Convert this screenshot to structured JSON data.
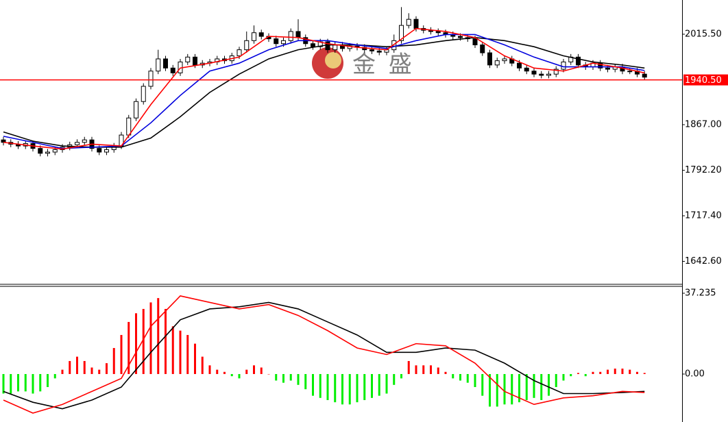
{
  "chart_data": [
    {
      "type": "candlestick",
      "watermark": "金 盛",
      "up_color": "#ffffff",
      "down_color": "#000000",
      "edge_color": "#000000",
      "open": [
        1842,
        1838,
        1835,
        1832,
        1836,
        1828,
        1820,
        1822,
        1826,
        1830,
        1834,
        1838,
        1842,
        1828,
        1822,
        1826,
        1832,
        1850,
        1878,
        1905,
        1930,
        1955,
        1975,
        1960,
        1952,
        1970,
        1978,
        1965,
        1968,
        1970,
        1975,
        1972,
        1980,
        1990,
        2005,
        2018,
        2012,
        2008,
        2000,
        2005,
        2020,
        2010,
        2000,
        1995,
        2003,
        1990,
        1998,
        1992,
        1996,
        1994,
        1990,
        1988,
        1986,
        1990,
        2005,
        2030,
        2040,
        2025,
        2022,
        2020,
        2018,
        2015,
        2012,
        2010,
        2008,
        1998,
        1985,
        1965,
        1972,
        1975,
        1968,
        1960,
        1955,
        1950,
        1948,
        1950,
        1958,
        1970,
        1978,
        1965,
        1962,
        1968,
        1960,
        1958,
        1962,
        1955,
        1955,
        1950
      ],
      "high": [
        1847,
        1843,
        1840,
        1841,
        1841,
        1833,
        1827,
        1831,
        1835,
        1839,
        1843,
        1847,
        1847,
        1833,
        1831,
        1837,
        1855,
        1883,
        1910,
        1935,
        1960,
        1990,
        1980,
        1965,
        1975,
        1983,
        1983,
        1973,
        1975,
        1980,
        1980,
        1985,
        1995,
        2020,
        2030,
        2023,
        2017,
        2013,
        2010,
        2025,
        2040,
        2015,
        2005,
        2008,
        2008,
        2003,
        2003,
        2001,
        2001,
        1999,
        1995,
        1993,
        1995,
        2015,
        2060,
        2050,
        2045,
        2030,
        2027,
        2025,
        2023,
        2020,
        2017,
        2015,
        2013,
        2003,
        1990,
        1977,
        1980,
        1980,
        1973,
        1965,
        1960,
        1955,
        1955,
        1963,
        1975,
        1983,
        1983,
        1970,
        1973,
        1973,
        1965,
        1967,
        1967,
        1960,
        1960,
        1955
      ],
      "low": [
        1833,
        1830,
        1827,
        1827,
        1823,
        1815,
        1815,
        1817,
        1821,
        1825,
        1829,
        1833,
        1823,
        1817,
        1817,
        1821,
        1827,
        1845,
        1873,
        1900,
        1925,
        1950,
        1955,
        1947,
        1947,
        1965,
        1960,
        1960,
        1963,
        1965,
        1967,
        1967,
        1975,
        1985,
        2000,
        2007,
        2003,
        1995,
        1995,
        2000,
        2005,
        1995,
        1990,
        1990,
        1985,
        1985,
        1987,
        1987,
        1989,
        1985,
        1983,
        1981,
        1981,
        1985,
        2000,
        2025,
        2020,
        2017,
        2015,
        2013,
        2010,
        2007,
        2005,
        2003,
        1993,
        1980,
        1960,
        1960,
        1967,
        1963,
        1955,
        1950,
        1945,
        1943,
        1943,
        1945,
        1953,
        1965,
        1960,
        1957,
        1957,
        1955,
        1953,
        1953,
        1950,
        1950,
        1945,
        1940
      ],
      "close": [
        1838,
        1835,
        1832,
        1836,
        1828,
        1820,
        1822,
        1826,
        1830,
        1834,
        1838,
        1842,
        1828,
        1822,
        1826,
        1832,
        1850,
        1878,
        1905,
        1930,
        1955,
        1975,
        1960,
        1952,
        1970,
        1978,
        1965,
        1968,
        1970,
        1975,
        1972,
        1980,
        1990,
        2005,
        2018,
        2012,
        2008,
        2000,
        2005,
        2020,
        2010,
        2000,
        1995,
        2003,
        1990,
        1998,
        1992,
        1996,
        1994,
        1990,
        1988,
        1986,
        1990,
        2005,
        2030,
        2040,
        2025,
        2022,
        2020,
        2018,
        2015,
        2012,
        2010,
        2008,
        1998,
        1985,
        1965,
        1972,
        1975,
        1968,
        1960,
        1955,
        1950,
        1948,
        1950,
        1958,
        1970,
        1978,
        1965,
        1962,
        1968,
        1960,
        1958,
        1962,
        1955,
        1955,
        1950,
        1945
      ],
      "series": [
        {
          "color": "#000000",
          "x": [
            0,
            4,
            8,
            12,
            16,
            20,
            24,
            28,
            32,
            36,
            40,
            44,
            48,
            52,
            56,
            60,
            64,
            68,
            72,
            76,
            80,
            84,
            87
          ],
          "values": [
            1855,
            1840,
            1832,
            1830,
            1830,
            1845,
            1880,
            1920,
            1950,
            1975,
            1990,
            1998,
            1998,
            1995,
            1998,
            2005,
            2010,
            2005,
            1995,
            1980,
            1970,
            1965,
            1960
          ]
        },
        {
          "color": "#0000dd",
          "x": [
            0,
            4,
            8,
            12,
            16,
            20,
            24,
            28,
            32,
            36,
            40,
            44,
            48,
            52,
            56,
            60,
            64,
            68,
            72,
            76,
            80,
            84,
            87
          ],
          "values": [
            1848,
            1838,
            1828,
            1830,
            1832,
            1870,
            1915,
            1955,
            1968,
            1990,
            2005,
            2005,
            1998,
            1992,
            2005,
            2015,
            2015,
            1998,
            1978,
            1962,
            1962,
            1962,
            1956
          ]
        },
        {
          "color": "#ff0000",
          "x": [
            0,
            4,
            8,
            12,
            16,
            20,
            24,
            28,
            32,
            36,
            40,
            44,
            48,
            52,
            56,
            60,
            64,
            68,
            72,
            76,
            80,
            84,
            87
          ],
          "values": [
            1838,
            1832,
            1827,
            1835,
            1832,
            1900,
            1960,
            1968,
            1978,
            2012,
            2010,
            2000,
            1994,
            1990,
            2025,
            2020,
            2010,
            1980,
            1960,
            1955,
            1968,
            1960,
            1952
          ]
        }
      ],
      "current_price": {
        "value": 1940.5,
        "label": "1940.50"
      },
      "current_price_color": "#ff0000",
      "ylim": [
        1604.9,
        2071.7
      ],
      "yticks": [
        {
          "value": 1642.6,
          "label": "1642.60"
        },
        {
          "value": 1717.4,
          "label": "1717.40"
        },
        {
          "value": 1792.2,
          "label": "1792.20"
        },
        {
          "value": 1867,
          "label": "1867.00"
        },
        {
          "value": 2015.5,
          "label": "2015.50"
        }
      ]
    },
    {
      "type": "macd",
      "up_color": "#ff0000",
      "down_color": "#00ee00",
      "values": [
        -9,
        -9,
        -8,
        -8,
        -9,
        -8,
        -6,
        -2,
        2,
        6,
        8,
        6,
        3,
        2,
        5,
        12,
        18,
        24,
        28,
        30,
        33,
        35,
        30,
        22,
        20,
        18,
        14,
        8,
        4,
        2,
        1,
        -1,
        -2,
        2,
        4,
        3,
        0,
        -3,
        -4,
        -3,
        -5,
        -7,
        -10,
        -11,
        -12,
        -13,
        -14,
        -14,
        -13,
        -12,
        -11,
        -10,
        -9,
        -5,
        -2,
        6,
        4,
        4,
        4,
        3,
        1,
        -2,
        -3,
        -4,
        -6,
        -10,
        -15,
        -15,
        -14,
        -14,
        -13,
        -12,
        -11,
        -12,
        -10,
        -6,
        -3,
        -1,
        0.5,
        -1,
        1,
        1,
        2,
        2.5,
        2.5,
        2,
        1,
        0.5
      ],
      "series": [
        {
          "color": "#000000",
          "x": [
            0,
            4,
            8,
            12,
            16,
            20,
            24,
            28,
            32,
            36,
            40,
            44,
            48,
            52,
            56,
            60,
            64,
            68,
            72,
            76,
            80,
            84,
            87
          ],
          "values": [
            -8,
            -13,
            -16,
            -12,
            -6,
            10,
            25,
            30,
            31,
            33,
            30,
            24,
            18,
            10,
            10,
            12,
            11,
            5,
            -3,
            -9,
            -9,
            -8.5,
            -8
          ]
        },
        {
          "color": "#ff0000",
          "x": [
            0,
            4,
            8,
            12,
            16,
            20,
            24,
            28,
            32,
            36,
            40,
            44,
            48,
            52,
            56,
            60,
            64,
            68,
            72,
            76,
            80,
            84,
            87
          ],
          "values": [
            -12,
            -18,
            -14,
            -8,
            -2,
            22,
            36,
            33,
            30,
            32,
            27,
            20,
            12,
            9,
            14,
            13,
            5,
            -8,
            -14,
            -11,
            -10,
            -8,
            -8.5
          ]
        }
      ],
      "ylim": [
        -22.1,
        40.4
      ],
      "yticks": [
        {
          "value": 0,
          "label": "0.00"
        },
        37.235
      ]
    }
  ]
}
